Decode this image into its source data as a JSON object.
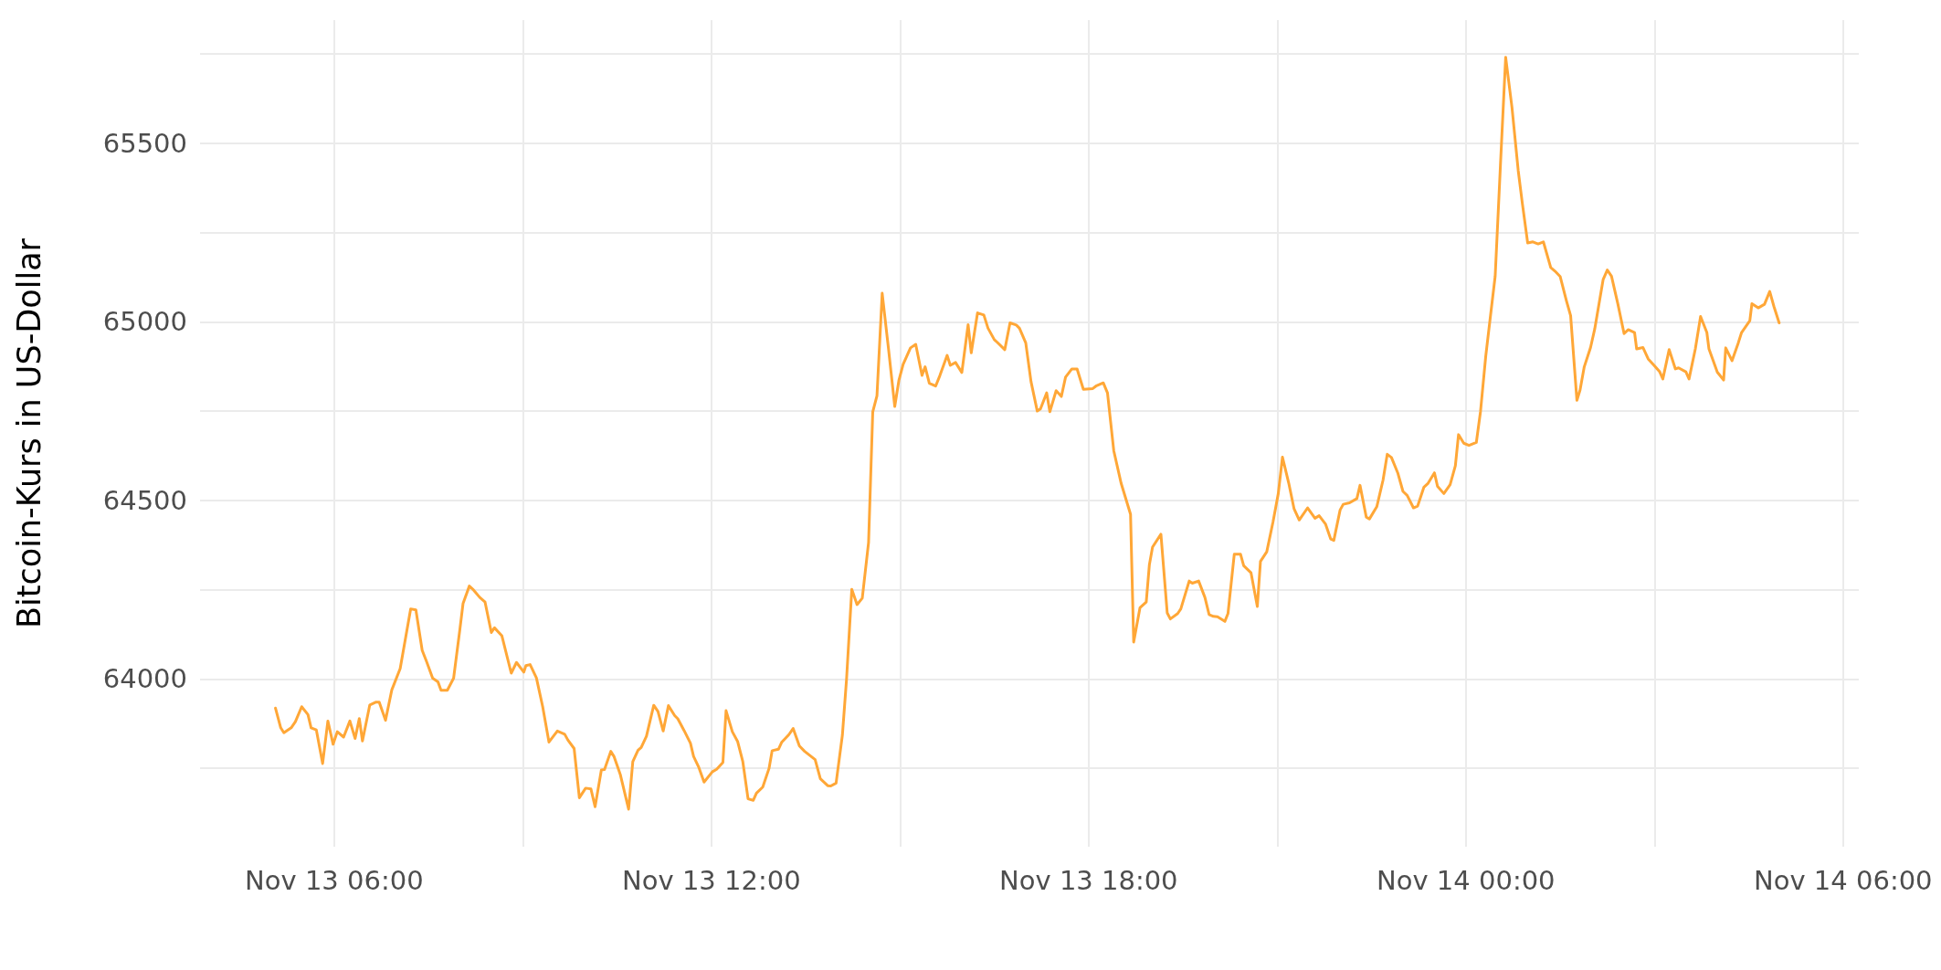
{
  "chart_data": {
    "type": "line",
    "ylabel": "Bitcoin-Kurs in US-Dollar",
    "xlim": [
      "--11-13T03:52",
      "--11-14T06:15"
    ],
    "xticks": [
      {
        "value": "--11-13T06:00",
        "label": "Nov 13 06:00"
      },
      {
        "value": "--11-13T09:00",
        "label": null
      },
      {
        "value": "--11-13T12:00",
        "label": "Nov 13 12:00"
      },
      {
        "value": "--11-13T15:00",
        "label": null
      },
      {
        "value": "--11-13T18:00",
        "label": "Nov 13 18:00"
      },
      {
        "value": "--11-13T21:00",
        "label": null
      },
      {
        "value": "--11-14T00:00",
        "label": "Nov 14 00:00"
      },
      {
        "value": "--11-14T03:00",
        "label": null
      },
      {
        "value": "--11-14T06:00",
        "label": "Nov 14 06:00"
      }
    ],
    "ylim": [
      63530,
      65845
    ],
    "yticks": [
      {
        "value": 63750,
        "label": null
      },
      64000,
      {
        "value": 64250,
        "label": null
      },
      64500,
      {
        "value": 64750,
        "label": null
      },
      65000,
      {
        "value": 65250,
        "label": null
      },
      65500,
      {
        "value": 65750,
        "label": null
      }
    ],
    "grid": true,
    "marker": "none",
    "line_style": "solid",
    "series": [
      {
        "color": "#ffa737",
        "x": [
          "--11-13T05:04",
          "--11-13T05:09",
          "--11-13T05:12",
          "--11-13T05:19",
          "--11-13T05:23",
          "--11-13T05:29",
          "--11-13T05:35",
          "--11-13T05:38",
          "--11-13T05:43",
          "--11-13T05:49",
          "--11-13T05:54",
          "--11-13T05:59",
          "--11-13T06:03",
          "--11-13T06:09",
          "--11-13T06:15",
          "--11-13T06:20",
          "--11-13T06:24",
          "--11-13T06:27",
          "--11-13T06:34",
          "--11-13T06:40",
          "--11-13T06:43",
          "--11-13T06:49",
          "--11-13T06:55",
          "--11-13T07:03",
          "--11-13T07:13",
          "--11-13T07:18",
          "--11-13T07:24",
          "--11-13T07:28",
          "--11-13T07:34",
          "--11-13T07:39",
          "--11-13T07:42",
          "--11-13T07:48",
          "--11-13T07:54",
          "--11-13T08:00",
          "--11-13T08:03",
          "--11-13T08:09",
          "--11-13T08:13",
          "--11-13T08:19",
          "--11-13T08:24",
          "--11-13T08:30",
          "--11-13T08:33",
          "--11-13T08:40",
          "--11-13T08:49",
          "--11-13T08:54",
          "--11-13T09:01",
          "--11-13T09:03",
          "--11-13T09:07",
          "--11-13T09:13",
          "--11-13T09:19",
          "--11-13T09:25",
          "--11-13T09:33",
          "--11-13T09:40",
          "--11-13T09:43",
          "--11-13T09:49",
          "--11-13T09:54",
          "--11-13T10:00",
          "--11-13T10:05",
          "--11-13T10:09",
          "--11-13T10:15",
          "--11-13T10:18",
          "--11-13T10:24",
          "--11-13T10:27",
          "--11-13T10:33",
          "--11-13T10:41",
          "--11-13T10:45",
          "--11-13T10:50",
          "--11-13T10:53",
          "--11-13T10:58",
          "--11-13T11:05",
          "--11-13T11:09",
          "--11-13T11:14",
          "--11-13T11:19",
          "--11-13T11:25",
          "--11-13T11:28",
          "--11-13T11:34",
          "--11-13T11:40",
          "--11-13T11:43",
          "--11-13T11:48",
          "--11-13T11:53",
          "--11-13T12:01",
          "--11-13T12:05",
          "--11-13T12:11",
          "--11-13T12:14",
          "--11-13T12:20",
          "--11-13T12:25",
          "--11-13T12:30",
          "--11-13T12:35",
          "--11-13T12:40",
          "--11-13T12:43",
          "--11-13T12:49",
          "--11-13T12:55",
          "--11-13T12:58",
          "--11-13T13:04",
          "--11-13T13:07",
          "--11-13T13:14",
          "--11-13T13:18",
          "--11-13T13:24",
          "--11-13T13:29",
          "--11-13T13:39",
          "--11-13T13:44",
          "--11-13T13:51",
          "--11-13T13:54",
          "--11-13T13:59",
          "--11-13T14:05",
          "--11-13T14:09",
          "--11-13T14:14",
          "--11-13T14:19",
          "--11-13T14:24",
          "--11-13T14:30",
          "--11-13T14:34",
          "--11-13T14:38",
          "--11-13T14:43",
          "--11-13T14:49",
          "--11-13T14:55",
          "--11-13T14:59",
          "--11-13T15:03",
          "--11-13T15:10",
          "--11-13T15:15",
          "--11-13T15:21",
          "--11-13T15:24",
          "--11-13T15:28",
          "--11-13T15:34",
          "--11-13T15:38",
          "--11-13T15:45",
          "--11-13T15:48",
          "--11-13T15:53",
          "--11-13T15:59",
          "--11-13T16:05",
          "--11-13T16:08",
          "--11-13T16:14",
          "--11-13T16:20",
          "--11-13T16:24",
          "--11-13T16:30",
          "--11-13T16:33",
          "--11-13T16:40",
          "--11-13T16:45",
          "--11-13T16:51",
          "--11-13T16:54",
          "--11-13T17:00",
          "--11-13T17:05",
          "--11-13T17:11",
          "--11-13T17:14",
          "--11-13T17:20",
          "--11-13T17:23",
          "--11-13T17:29",
          "--11-13T17:34",
          "--11-13T17:38",
          "--11-13T17:44",
          "--11-13T17:49",
          "--11-13T17:55",
          "--11-13T18:04",
          "--11-13T18:07",
          "--11-13T18:14",
          "--11-13T18:18",
          "--11-13T18:24",
          "--11-13T18:31",
          "--11-13T18:40",
          "--11-13T18:43",
          "--11-13T18:49",
          "--11-13T18:55",
          "--11-13T18:58",
          "--11-13T19:01",
          "--11-13T19:09",
          "--11-13T19:15",
          "--11-13T19:18",
          "--11-13T19:25",
          "--11-13T19:28",
          "--11-13T19:36",
          "--11-13T19:39",
          "--11-13T19:45",
          "--11-13T19:51",
          "--11-13T19:55",
          "--11-13T19:59",
          "--11-13T20:03",
          "--11-13T20:10",
          "--11-13T20:13",
          "--11-13T20:19",
          "--11-13T20:25",
          "--11-13T20:28",
          "--11-13T20:35",
          "--11-13T20:41",
          "--11-13T20:44",
          "--11-13T20:50",
          "--11-13T20:56",
          "--11-13T21:01",
          "--11-13T21:05",
          "--11-13T21:11",
          "--11-13T21:16",
          "--11-13T21:21",
          "--11-13T21:29",
          "--11-13T21:36",
          "--11-13T21:40",
          "--11-13T21:46",
          "--11-13T21:51",
          "--11-13T21:54",
          "--11-13T22:00",
          "--11-13T22:03",
          "--11-13T22:09",
          "--11-13T22:16",
          "--11-13T22:19",
          "--11-13T22:25",
          "--11-13T22:28",
          "--11-13T22:35",
          "--11-13T22:41",
          "--11-13T22:45",
          "--11-13T22:49",
          "--11-13T22:55",
          "--11-13T23:00",
          "--11-13T23:04",
          "--11-13T23:10",
          "--11-13T23:14",
          "--11-13T23:20",
          "--11-13T23:24",
          "--11-13T23:30",
          "--11-13T23:33",
          "--11-13T23:39",
          "--11-13T23:45",
          "--11-13T23:50",
          "--11-13T23:53",
          "--11-13T23:58",
          "--11-14T00:03",
          "--11-14T00:10",
          "--11-14T00:14",
          "--11-14T00:19",
          "--11-14T00:23",
          "--11-14T00:28",
          "--11-14T00:33",
          "--11-14T00:38",
          "--11-14T00:44",
          "--11-14T00:50",
          "--11-14T00:54",
          "--11-14T00:59",
          "--11-14T01:04",
          "--11-14T01:09",
          "--11-14T01:14",
          "--11-14T01:21",
          "--11-14T01:25",
          "--11-14T01:30",
          "--11-14T01:36",
          "--11-14T01:40",
          "--11-14T01:46",
          "--11-14T01:49",
          "--11-14T01:53",
          "--11-14T01:59",
          "--11-14T02:03",
          "--11-14T02:11",
          "--11-14T02:15",
          "--11-14T02:19",
          "--11-14T02:25",
          "--11-14T02:31",
          "--11-14T02:35",
          "--11-14T02:41",
          "--11-14T02:43",
          "--11-14T02:49",
          "--11-14T02:54",
          "--11-14T03:00",
          "--11-14T03:05",
          "--11-14T03:08",
          "--11-14T03:14",
          "--11-14T03:20",
          "--11-14T03:23",
          "--11-14T03:30",
          "--11-14T03:33",
          "--11-14T03:39",
          "--11-14T03:44",
          "--11-14T03:50",
          "--11-14T03:52",
          "--11-14T04:00",
          "--11-14T04:06",
          "--11-14T04:08",
          "--11-14T04:14",
          "--11-14T04:20",
          "--11-14T04:23",
          "--11-14T04:31",
          "--11-14T04:33",
          "--11-14T04:39",
          "--11-14T04:45",
          "--11-14T04:50",
          "--11-14T04:54",
          "--11-14T04:59"
        ],
        "values": [
          63918,
          63863,
          63849,
          63863,
          63880,
          63922,
          63900,
          63863,
          63857,
          63763,
          63882,
          63817,
          63852,
          63837,
          63882,
          63833,
          63889,
          63826,
          63927,
          63935,
          63935,
          63884,
          63969,
          64029,
          64196,
          64193,
          64080,
          64050,
          64002,
          63992,
          63968,
          63968,
          64002,
          64139,
          64211,
          64260,
          64249,
          64228,
          64215,
          64130,
          64143,
          64121,
          64016,
          64046,
          64019,
          64037,
          64040,
          64003,
          63922,
          63823,
          63854,
          63845,
          63829,
          63805,
          63667,
          63694,
          63692,
          63642,
          63745,
          63746,
          63797,
          63783,
          63733,
          63635,
          63768,
          63800,
          63808,
          63839,
          63926,
          63909,
          63854,
          63925,
          63897,
          63888,
          63855,
          63820,
          63783,
          63752,
          63711,
          63740,
          63747,
          63766,
          63911,
          63852,
          63825,
          63768,
          63664,
          63660,
          63680,
          63697,
          63749,
          63799,
          63803,
          63822,
          63844,
          63861,
          63812,
          63797,
          63774,
          63720,
          63701,
          63700,
          63708,
          63842,
          64000,
          64251,
          64208,
          64226,
          64382,
          64748,
          64793,
          65080,
          64925,
          64763,
          64837,
          64881,
          64927,
          64937,
          64850,
          64874,
          64828,
          64820,
          64849,
          64906,
          64878,
          64886,
          64858,
          64992,
          64913,
          65025,
          65019,
          64982,
          64950,
          64942,
          64922,
          64997,
          64991,
          64982,
          64941,
          64833,
          64750,
          64756,
          64801,
          64748,
          64807,
          64791,
          64845,
          64868,
          64868,
          64811,
          64813,
          64820,
          64829,
          64801,
          64639,
          64548,
          64461,
          64103,
          64199,
          64215,
          64320,
          64369,
          64405,
          64185,
          64168,
          64183,
          64196,
          64274,
          64268,
          64274,
          64228,
          64180,
          64175,
          64174,
          64161,
          64183,
          64349,
          64349,
          64317,
          64297,
          64203,
          64329,
          64356,
          64440,
          64519,
          64621,
          64548,
          64477,
          64445,
          64479,
          64450,
          64457,
          64434,
          64392,
          64388,
          64473,
          64489,
          64493,
          64505,
          64542,
          64453,
          64448,
          64482,
          64557,
          64629,
          64620,
          64577,
          64525,
          64514,
          64479,
          64484,
          64537,
          64548,
          64577,
          64539,
          64519,
          64544,
          64597,
          64684,
          64660,
          64654,
          64662,
          64749,
          64904,
          65004,
          65128,
          65438,
          65741,
          65601,
          65423,
          65330,
          65221,
          65224,
          65218,
          65224,
          65152,
          65142,
          65127,
          65059,
          65017,
          64780,
          64809,
          64874,
          64928,
          64980,
          65118,
          65145,
          65128,
          65051,
          64967,
          64978,
          64970,
          64924,
          64928,
          64896,
          64877,
          64860,
          64840,
          64922,
          64868,
          64871,
          64860,
          64840,
          64924,
          65015,
          64970,
          64924,
          64859,
          64837,
          64927,
          64891,
          64941,
          64969,
          65003,
          65051,
          65039,
          65049,
          65085,
          65043,
          64997
        ]
      }
    ]
  }
}
